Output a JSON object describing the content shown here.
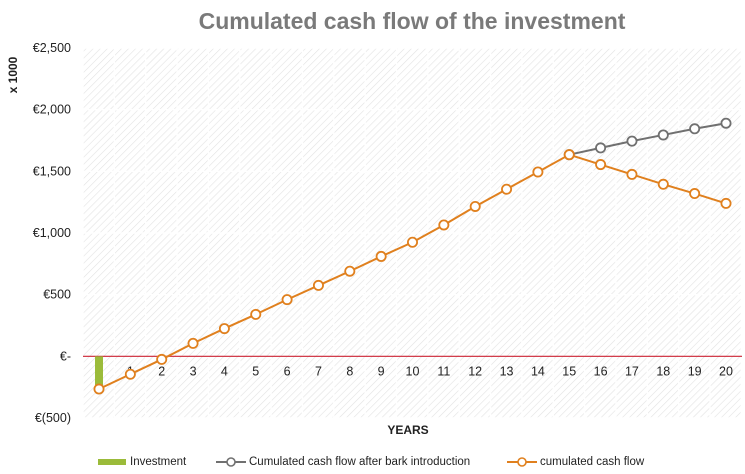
{
  "chart_data": {
    "type": "line",
    "title": "Cumulated cash flow of the investment",
    "xlabel": "YEARS",
    "ylabel": "x 1000",
    "x": [
      0,
      1,
      2,
      3,
      4,
      5,
      6,
      7,
      8,
      9,
      10,
      11,
      12,
      13,
      14,
      15,
      16,
      17,
      18,
      19,
      20
    ],
    "x_tick_labels": [
      "0",
      "1",
      "2",
      "3",
      "4",
      "5",
      "6",
      "7",
      "8",
      "9",
      "10",
      "11",
      "12",
      "13",
      "14",
      "15",
      "16",
      "17",
      "18",
      "19",
      "20"
    ],
    "ylim": [
      -500,
      2500
    ],
    "y_ticks": [
      -500,
      0,
      500,
      1000,
      1500,
      2000,
      2500
    ],
    "y_tick_labels": [
      "€(500)",
      "€-",
      "€500",
      "€1,000",
      "€1,500",
      "€2,000",
      "€2,500"
    ],
    "grid": true,
    "legend_position": "bottom",
    "series": [
      {
        "name": "Investment",
        "kind": "bar",
        "color": "#9bbb3a",
        "x": [
          0
        ],
        "values": [
          -250
        ]
      },
      {
        "name": "Cumulated cash flow after bark introduction",
        "kind": "line",
        "color": "#707070",
        "x": [
          15,
          16,
          17,
          18,
          19,
          20
        ],
        "values": [
          1635,
          1690,
          1745,
          1795,
          1845,
          1890
        ]
      },
      {
        "name": "cumulated cash flow",
        "kind": "line",
        "color": "#e0801e",
        "x": [
          0,
          1,
          2,
          3,
          4,
          5,
          6,
          7,
          8,
          9,
          10,
          11,
          12,
          13,
          14,
          15,
          16,
          17,
          18,
          19,
          20
        ],
        "values": [
          -265,
          -145,
          -25,
          105,
          225,
          340,
          460,
          575,
          690,
          810,
          925,
          1065,
          1215,
          1355,
          1495,
          1635,
          1555,
          1475,
          1395,
          1320,
          1240
        ]
      }
    ],
    "zero_line_color": "#cc2233"
  }
}
